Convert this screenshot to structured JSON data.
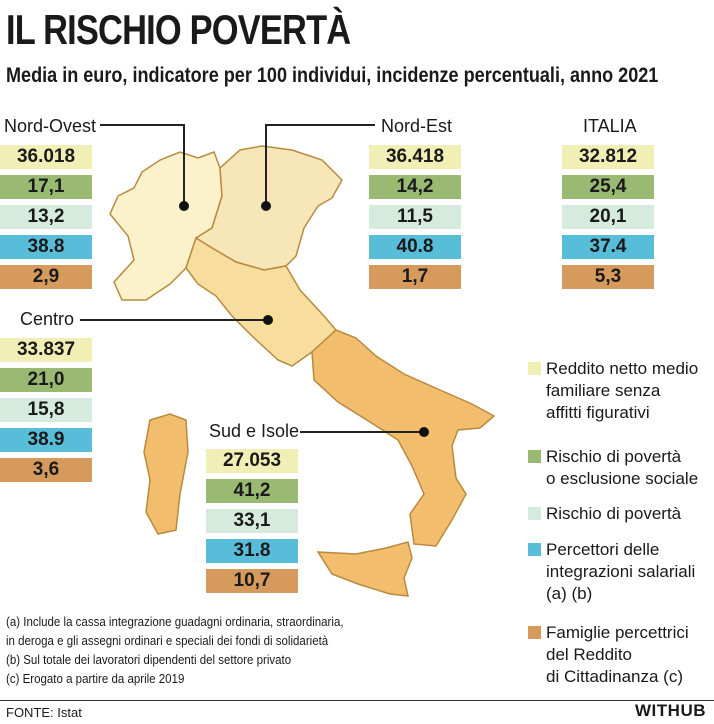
{
  "title": "IL RISCHIO POVERTÀ",
  "subtitle": "Media in euro, indicatore per 100 individui, incidenze percentuali, anno 2021",
  "chart_data": {
    "type": "table",
    "indicators": [
      "Reddito netto medio familiare senza affitti figurativi",
      "Rischio di povertà o esclusione sociale",
      "Rischio di povertà",
      "Percettori delle integrazioni salariali (a) (b)",
      "Famiglie percettrici del Reddito di Cittadinanza (c)"
    ],
    "regions": [
      {
        "name": "Nord-Ovest",
        "values": [
          "36.018",
          "17,1",
          "13,2",
          "38.8",
          "2,9"
        ]
      },
      {
        "name": "Nord-Est",
        "values": [
          "36.418",
          "14,2",
          "11,5",
          "40.8",
          "1,7"
        ]
      },
      {
        "name": "ITALIA",
        "values": [
          "32.812",
          "25,4",
          "20,1",
          "37.4",
          "5,3"
        ]
      },
      {
        "name": "Centro",
        "values": [
          "33.837",
          "21,0",
          "15,8",
          "38.9",
          "3,6"
        ]
      },
      {
        "name": "Sud e Isole",
        "values": [
          "27.053",
          "41,2",
          "33,1",
          "31.8",
          "10,7"
        ]
      }
    ],
    "colors": [
      "#f2efb6",
      "#9ab972",
      "#d6ebdd",
      "#58bdd9",
      "#d79a5d"
    ],
    "map_colors": {
      "nord_ovest": "#fbf2cc",
      "nord_est": "#f6e6b8",
      "centro": "#f7dd9e",
      "sud": "#f3bd6e"
    }
  },
  "legend": [
    {
      "lines": [
        "Reddito netto medio",
        "familiare senza",
        "affitti figurativi"
      ]
    },
    {
      "lines": [
        "Rischio di povertà",
        "o esclusione sociale"
      ]
    },
    {
      "lines": [
        "Rischio di povertà"
      ]
    },
    {
      "lines": [
        "Percettori delle",
        "integrazioni salariali",
        "(a) (b)"
      ]
    },
    {
      "lines": [
        "Famiglie percettrici",
        "del Reddito",
        "di Cittadinanza (c)"
      ]
    }
  ],
  "notes": [
    "(a) Include la cassa integrazione guadagni ordinaria, straordinaria,",
    "in deroga e gli assegni ordinari e speciali dei fondi di solidarietà",
    "(b) Sul totale dei lavoratori dipendenti del settore privato",
    "(c) Erogato a partire da aprile 2019"
  ],
  "source": "FONTE: Istat",
  "brand": "WITHUB"
}
